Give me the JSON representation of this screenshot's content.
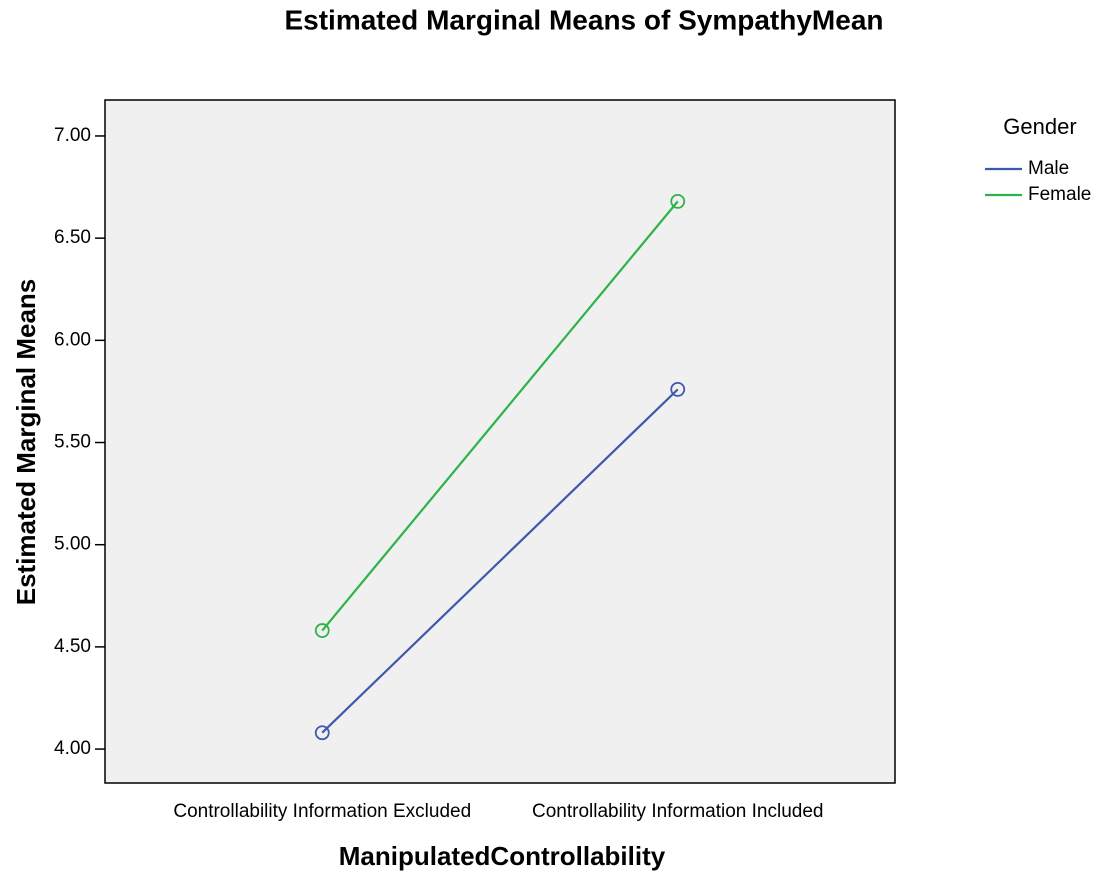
{
  "chart_data": {
    "type": "line",
    "title": "Estimated Marginal Means of SympathyMean",
    "x_label": "ManipulatedControllability",
    "y_label": "Estimated Marginal Means",
    "categories": [
      "Controllability Information Excluded",
      "Controllability Information Included"
    ],
    "series": [
      {
        "name": "Male",
        "color": "#3e58ac",
        "values": [
          4.08,
          5.76
        ]
      },
      {
        "name": "Female",
        "color": "#2db34a",
        "values": [
          4.58,
          6.68
        ]
      }
    ],
    "legend_title": "Gender",
    "ylim": [
      3.834,
      7.176
    ],
    "yticks": [
      {
        "value": 4,
        "label": "4.00"
      },
      {
        "value": 4.5,
        "label": "4.50"
      },
      {
        "value": 5,
        "label": "5.00"
      },
      {
        "value": 5.5,
        "label": "5.50"
      },
      {
        "value": 6,
        "label": "6.00"
      },
      {
        "value": 6.5,
        "label": "6.50"
      },
      {
        "value": 7,
        "label": "7.00"
      }
    ],
    "plot_background": "#f0f0f0",
    "legend_position": "right"
  }
}
